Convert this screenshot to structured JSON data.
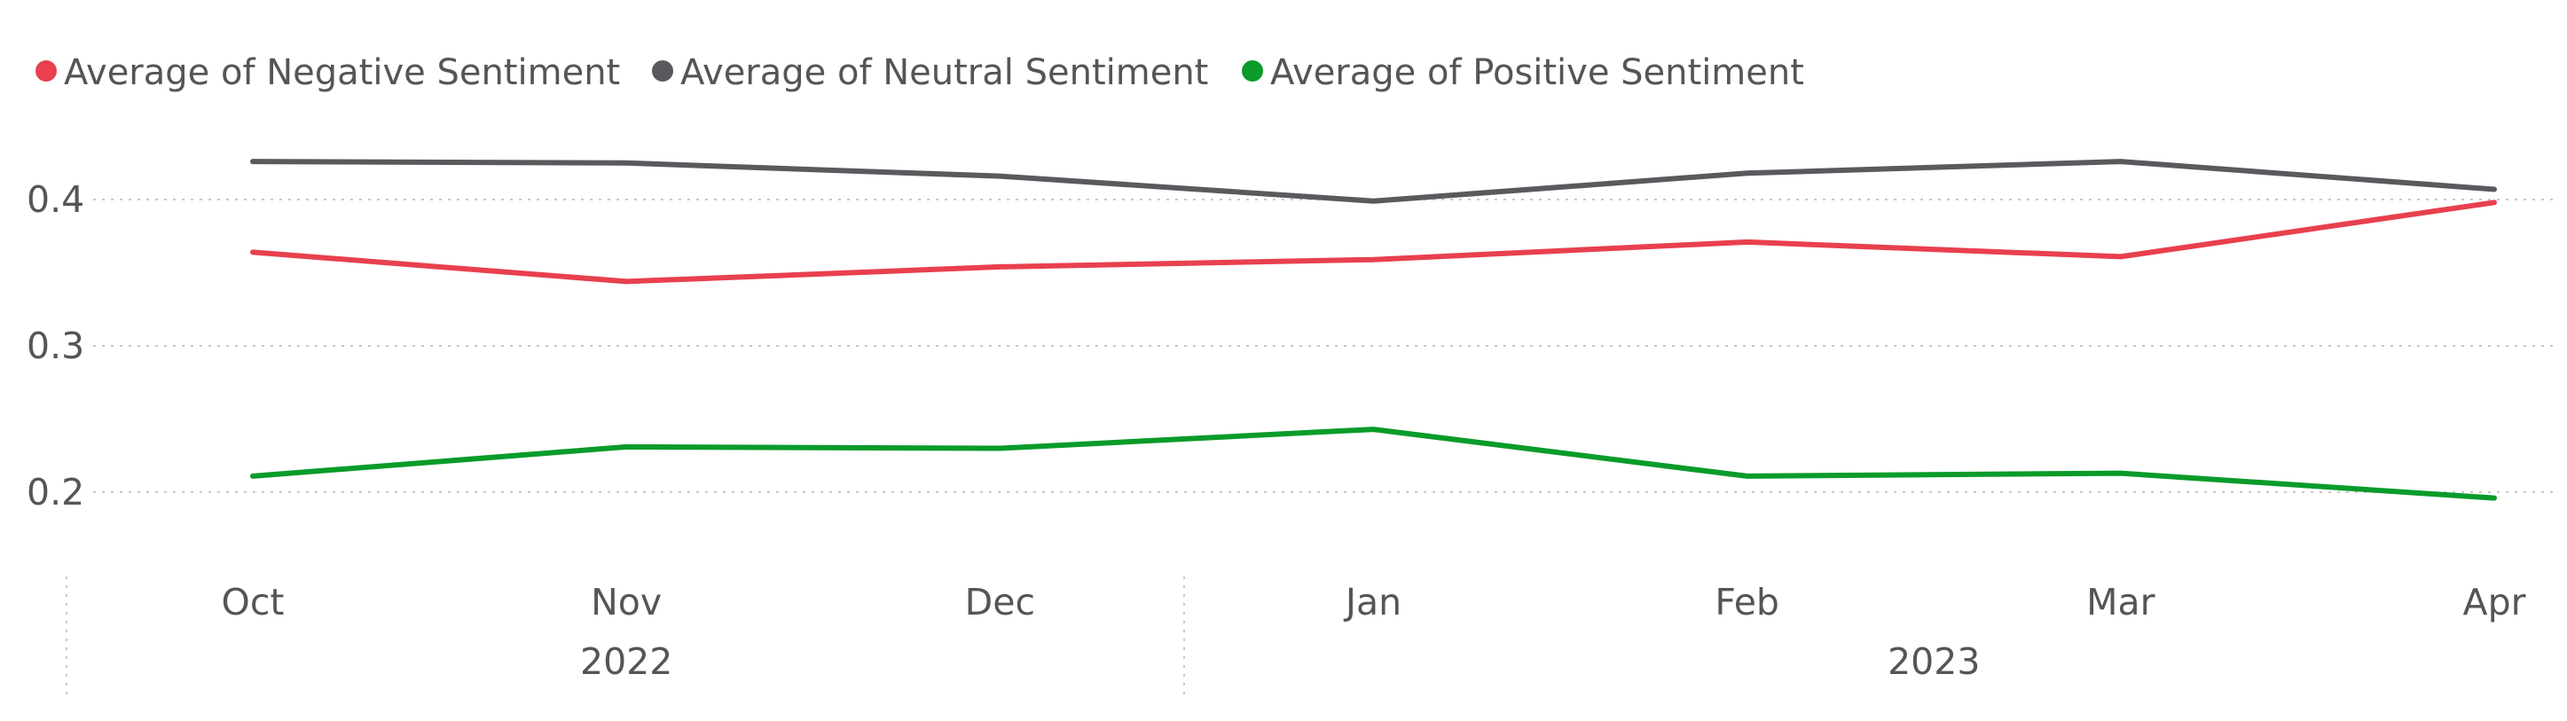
{
  "chart_data": {
    "type": "line",
    "title": "",
    "xlabel": "",
    "ylabel": "",
    "categories": [
      "Oct",
      "Nov",
      "Dec",
      "Jan",
      "Feb",
      "Mar",
      "Apr"
    ],
    "year_groups": [
      {
        "label": "2022",
        "months": [
          "Oct",
          "Nov",
          "Dec"
        ]
      },
      {
        "label": "2023",
        "months": [
          "Jan",
          "Feb",
          "Mar",
          "Apr"
        ]
      }
    ],
    "yticks": [
      "0.2",
      "0.3",
      "0.4"
    ],
    "ytick_values": [
      0.2,
      0.3,
      0.4
    ],
    "ylim": [
      0.14,
      0.46
    ],
    "grid": true,
    "legend_position": "top-left",
    "series": [
      {
        "name": "Average of Negative Sentiment",
        "color": "#E8404E",
        "values": [
          0.364,
          0.344,
          0.354,
          0.359,
          0.371,
          0.361,
          0.398
        ]
      },
      {
        "name": "Average of Neutral Sentiment",
        "color": "#5A5A5E",
        "values": [
          0.426,
          0.425,
          0.416,
          0.399,
          0.418,
          0.426,
          0.407
        ]
      },
      {
        "name": "Average of Positive Sentiment",
        "color": "#0A9B2A",
        "values": [
          0.211,
          0.231,
          0.23,
          0.243,
          0.211,
          0.213,
          0.196
        ]
      }
    ]
  }
}
